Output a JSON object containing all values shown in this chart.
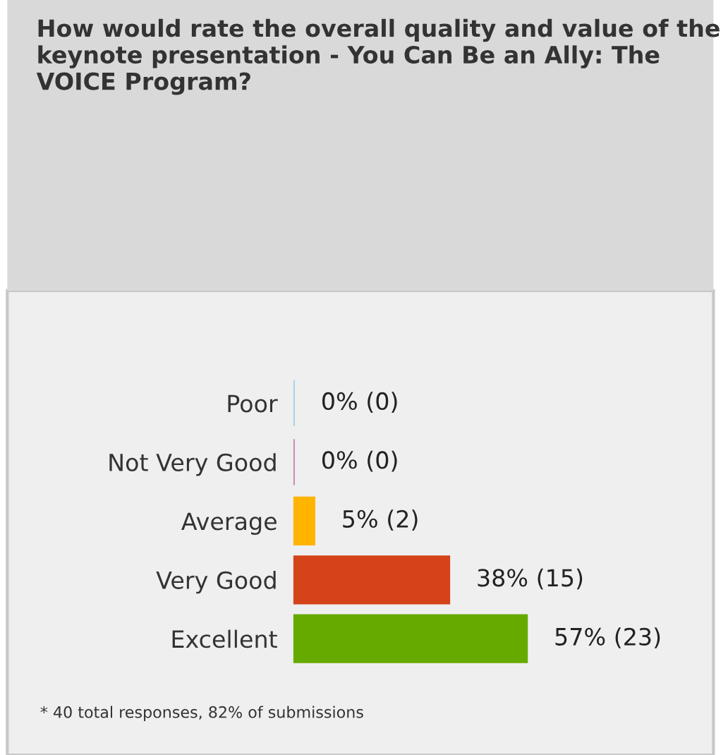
{
  "chart_data": {
    "type": "bar",
    "orientation": "horizontal",
    "title": "How would rate the overall quality and value of the keynote presentation - You Can Be an Ally: The VOICE Program?",
    "categories": [
      "Poor",
      "Not Very Good",
      "Average",
      "Very Good",
      "Excellent"
    ],
    "values": [
      0,
      0,
      5,
      38,
      57
    ],
    "value_labels": [
      "0% (0)",
      "0% (0)",
      "5% (2)",
      "38% (15)",
      "57% (23)"
    ],
    "colors": [
      "#a9d5e8",
      "#c890b8",
      "#ffb400",
      "#d4431a",
      "#66aa00"
    ],
    "annotations": [
      "* 40 total responses, 82% of submissions"
    ],
    "grid": false,
    "legend": false
  }
}
